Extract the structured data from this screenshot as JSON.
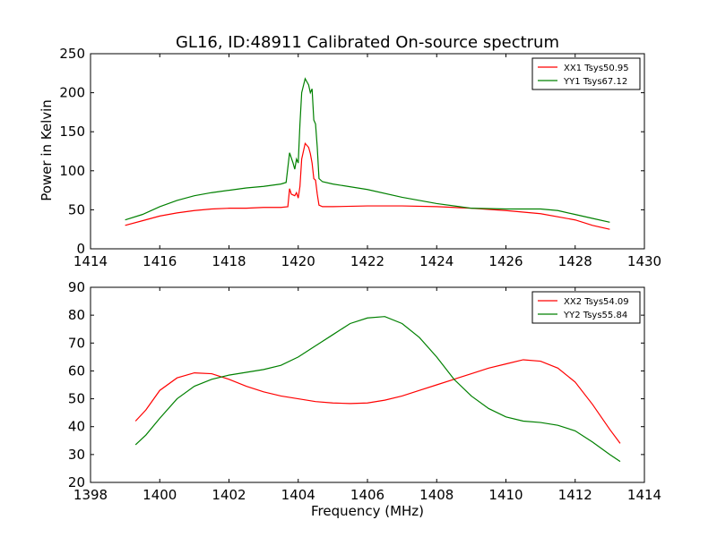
{
  "chart_data": [
    {
      "type": "line",
      "title": "GL16, ID:48911 Calibrated On-source spectrum",
      "xlabel": "",
      "ylabel": "Power in Kelvin",
      "xlim": [
        1414,
        1430
      ],
      "ylim": [
        0,
        250
      ],
      "xticks": [
        1414,
        1416,
        1418,
        1420,
        1422,
        1424,
        1426,
        1428,
        1430
      ],
      "yticks": [
        0,
        50,
        100,
        150,
        200,
        250
      ],
      "grid": false,
      "legend_position": "top-right",
      "series": [
        {
          "name": "XX1 Tsys50.95",
          "color": "#ff0000",
          "points": [
            [
              1415.0,
              30
            ],
            [
              1415.5,
              36
            ],
            [
              1416.0,
              42
            ],
            [
              1416.5,
              46
            ],
            [
              1417.0,
              49
            ],
            [
              1417.5,
              51
            ],
            [
              1418.0,
              52
            ],
            [
              1418.5,
              52
            ],
            [
              1419.0,
              53
            ],
            [
              1419.5,
              53
            ],
            [
              1419.7,
              54
            ],
            [
              1419.75,
              77
            ],
            [
              1419.8,
              70
            ],
            [
              1419.9,
              68
            ],
            [
              1419.95,
              72
            ],
            [
              1420.0,
              65
            ],
            [
              1420.05,
              80
            ],
            [
              1420.1,
              115
            ],
            [
              1420.2,
              135
            ],
            [
              1420.3,
              130
            ],
            [
              1420.35,
              122
            ],
            [
              1420.4,
              110
            ],
            [
              1420.45,
              90
            ],
            [
              1420.5,
              88
            ],
            [
              1420.55,
              70
            ],
            [
              1420.6,
              56
            ],
            [
              1420.7,
              54
            ],
            [
              1421.0,
              54
            ],
            [
              1422.0,
              55
            ],
            [
              1423.0,
              55
            ],
            [
              1424.0,
              54
            ],
            [
              1425.0,
              52
            ],
            [
              1426.0,
              49
            ],
            [
              1427.0,
              45
            ],
            [
              1428.0,
              37
            ],
            [
              1428.5,
              30
            ],
            [
              1429.0,
              25
            ]
          ]
        },
        {
          "name": "YY1 Tsys67.12",
          "color": "#008000",
          "points": [
            [
              1415.0,
              37
            ],
            [
              1415.5,
              44
            ],
            [
              1416.0,
              54
            ],
            [
              1416.5,
              62
            ],
            [
              1417.0,
              68
            ],
            [
              1417.5,
              72
            ],
            [
              1418.0,
              75
            ],
            [
              1418.5,
              78
            ],
            [
              1419.0,
              80
            ],
            [
              1419.5,
              83
            ],
            [
              1419.65,
              85
            ],
            [
              1419.75,
              123
            ],
            [
              1419.85,
              110
            ],
            [
              1419.9,
              102
            ],
            [
              1419.95,
              115
            ],
            [
              1420.0,
              110
            ],
            [
              1420.05,
              160
            ],
            [
              1420.1,
              200
            ],
            [
              1420.2,
              218
            ],
            [
              1420.25,
              214
            ],
            [
              1420.3,
              210
            ],
            [
              1420.35,
              200
            ],
            [
              1420.4,
              205
            ],
            [
              1420.45,
              165
            ],
            [
              1420.5,
              160
            ],
            [
              1420.55,
              130
            ],
            [
              1420.6,
              90
            ],
            [
              1420.7,
              86
            ],
            [
              1421.0,
              83
            ],
            [
              1422.0,
              76
            ],
            [
              1423.0,
              66
            ],
            [
              1424.0,
              58
            ],
            [
              1425.0,
              52
            ],
            [
              1426.0,
              51
            ],
            [
              1427.0,
              51
            ],
            [
              1427.5,
              49
            ],
            [
              1428.0,
              44
            ],
            [
              1428.5,
              39
            ],
            [
              1429.0,
              34
            ]
          ]
        }
      ]
    },
    {
      "type": "line",
      "title": "",
      "xlabel": "Frequency (MHz)",
      "ylabel": "",
      "xlim": [
        1398,
        1414
      ],
      "ylim": [
        20,
        90
      ],
      "xticks": [
        1398,
        1400,
        1402,
        1404,
        1406,
        1408,
        1410,
        1412,
        1414
      ],
      "yticks": [
        20,
        30,
        40,
        50,
        60,
        70,
        80,
        90
      ],
      "grid": false,
      "legend_position": "top-right",
      "series": [
        {
          "name": "XX2 Tsys54.09",
          "color": "#ff0000",
          "points": [
            [
              1399.3,
              42
            ],
            [
              1399.6,
              46
            ],
            [
              1400.0,
              53
            ],
            [
              1400.5,
              57.5
            ],
            [
              1401.0,
              59.3
            ],
            [
              1401.5,
              59
            ],
            [
              1402.0,
              57
            ],
            [
              1402.5,
              54.5
            ],
            [
              1403.0,
              52.5
            ],
            [
              1403.5,
              51
            ],
            [
              1404.0,
              50
            ],
            [
              1404.5,
              49
            ],
            [
              1405.0,
              48.5
            ],
            [
              1405.5,
              48.3
            ],
            [
              1406.0,
              48.5
            ],
            [
              1406.5,
              49.5
            ],
            [
              1407.0,
              51
            ],
            [
              1407.5,
              53
            ],
            [
              1408.0,
              55
            ],
            [
              1408.5,
              57
            ],
            [
              1409.0,
              59
            ],
            [
              1409.5,
              61
            ],
            [
              1410.0,
              62.5
            ],
            [
              1410.5,
              64
            ],
            [
              1411.0,
              63.5
            ],
            [
              1411.5,
              61
            ],
            [
              1412.0,
              56
            ],
            [
              1412.5,
              48
            ],
            [
              1413.0,
              39
            ],
            [
              1413.3,
              34
            ]
          ]
        },
        {
          "name": "YY2 Tsys55.84",
          "color": "#008000",
          "points": [
            [
              1399.3,
              33.5
            ],
            [
              1399.6,
              37
            ],
            [
              1400.0,
              43
            ],
            [
              1400.5,
              50
            ],
            [
              1401.0,
              54.5
            ],
            [
              1401.5,
              57
            ],
            [
              1402.0,
              58.5
            ],
            [
              1402.5,
              59.5
            ],
            [
              1403.0,
              60.5
            ],
            [
              1403.5,
              62
            ],
            [
              1404.0,
              65
            ],
            [
              1404.5,
              69
            ],
            [
              1405.0,
              73
            ],
            [
              1405.5,
              77
            ],
            [
              1406.0,
              79
            ],
            [
              1406.5,
              79.5
            ],
            [
              1407.0,
              77
            ],
            [
              1407.5,
              72
            ],
            [
              1408.0,
              65
            ],
            [
              1408.5,
              57
            ],
            [
              1409.0,
              51
            ],
            [
              1409.5,
              46.5
            ],
            [
              1410.0,
              43.5
            ],
            [
              1410.5,
              42
            ],
            [
              1411.0,
              41.5
            ],
            [
              1411.5,
              40.5
            ],
            [
              1412.0,
              38.5
            ],
            [
              1412.5,
              34.5
            ],
            [
              1413.0,
              30
            ],
            [
              1413.3,
              27.5
            ]
          ]
        }
      ]
    }
  ]
}
